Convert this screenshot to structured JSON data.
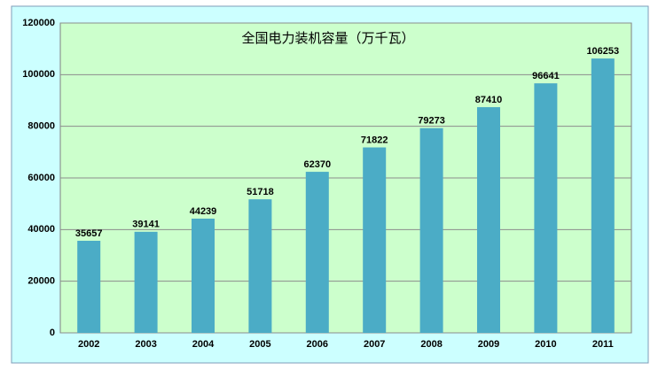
{
  "chart_data": {
    "type": "bar",
    "title": "全国电力装机容量（万千瓦）",
    "categories": [
      "2002",
      "2003",
      "2004",
      "2005",
      "2006",
      "2007",
      "2008",
      "2009",
      "2010",
      "2011"
    ],
    "values": [
      35657,
      39141,
      44239,
      51718,
      62370,
      71822,
      79273,
      87410,
      96641,
      106253
    ],
    "color": "#4bacc6",
    "ylim": [
      0,
      120000
    ],
    "yticks": [
      0,
      20000,
      40000,
      60000,
      80000,
      100000,
      120000
    ],
    "grid": true
  }
}
